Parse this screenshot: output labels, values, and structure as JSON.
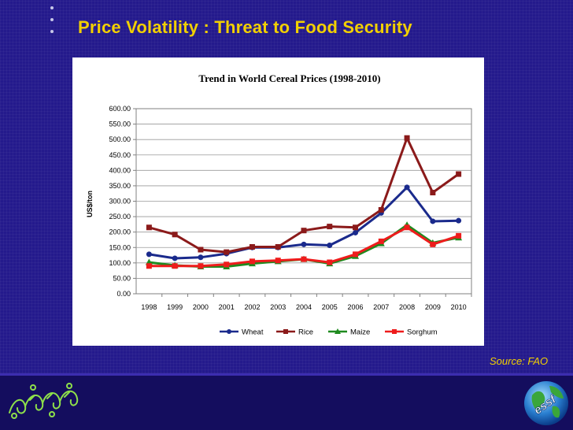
{
  "slide": {
    "title": "Price Volatility : Threat to Food Security",
    "source": "Source: FAO",
    "logo_text": "essf"
  },
  "colors": {
    "background": "#241a8c",
    "title": "#f2d000",
    "wheat": "#1a2a8c",
    "rice": "#8b1a1a",
    "maize": "#1f8a1f",
    "sorghum": "#ee1c1c"
  },
  "chart_data": {
    "type": "line",
    "title": "Trend in World Cereal Prices  (1998-2010)",
    "xlabel": "",
    "ylabel": "US$/ton",
    "ylim": [
      0,
      600
    ],
    "yticks": [
      "0.00",
      "50.00",
      "100.00",
      "150.00",
      "200.00",
      "250.00",
      "300.00",
      "350.00",
      "400.00",
      "450.00",
      "500.00",
      "550.00",
      "600.00"
    ],
    "categories": [
      "1998",
      "1999",
      "2000",
      "2001",
      "2002",
      "2003",
      "2004",
      "2005",
      "2006",
      "2007",
      "2008",
      "2009",
      "2010"
    ],
    "grid": true,
    "legend": "bottom",
    "series": [
      {
        "name": "Wheat",
        "color": "#1a2a8c",
        "marker": "circle",
        "values": [
          128,
          115,
          118,
          130,
          150,
          150,
          160,
          157,
          198,
          262,
          345,
          235,
          237
        ]
      },
      {
        "name": "Rice",
        "color": "#8b1a1a",
        "marker": "square",
        "values": [
          215,
          192,
          143,
          135,
          152,
          152,
          205,
          218,
          215,
          272,
          505,
          328,
          388
        ]
      },
      {
        "name": "Maize",
        "color": "#1f8a1f",
        "marker": "triangle",
        "values": [
          102,
          92,
          88,
          88,
          98,
          105,
          112,
          98,
          122,
          163,
          223,
          165,
          182
        ]
      },
      {
        "name": "Sorghum",
        "color": "#ee1c1c",
        "marker": "square",
        "values": [
          90,
          90,
          90,
          95,
          105,
          108,
          112,
          102,
          128,
          170,
          215,
          160,
          188
        ]
      }
    ]
  }
}
